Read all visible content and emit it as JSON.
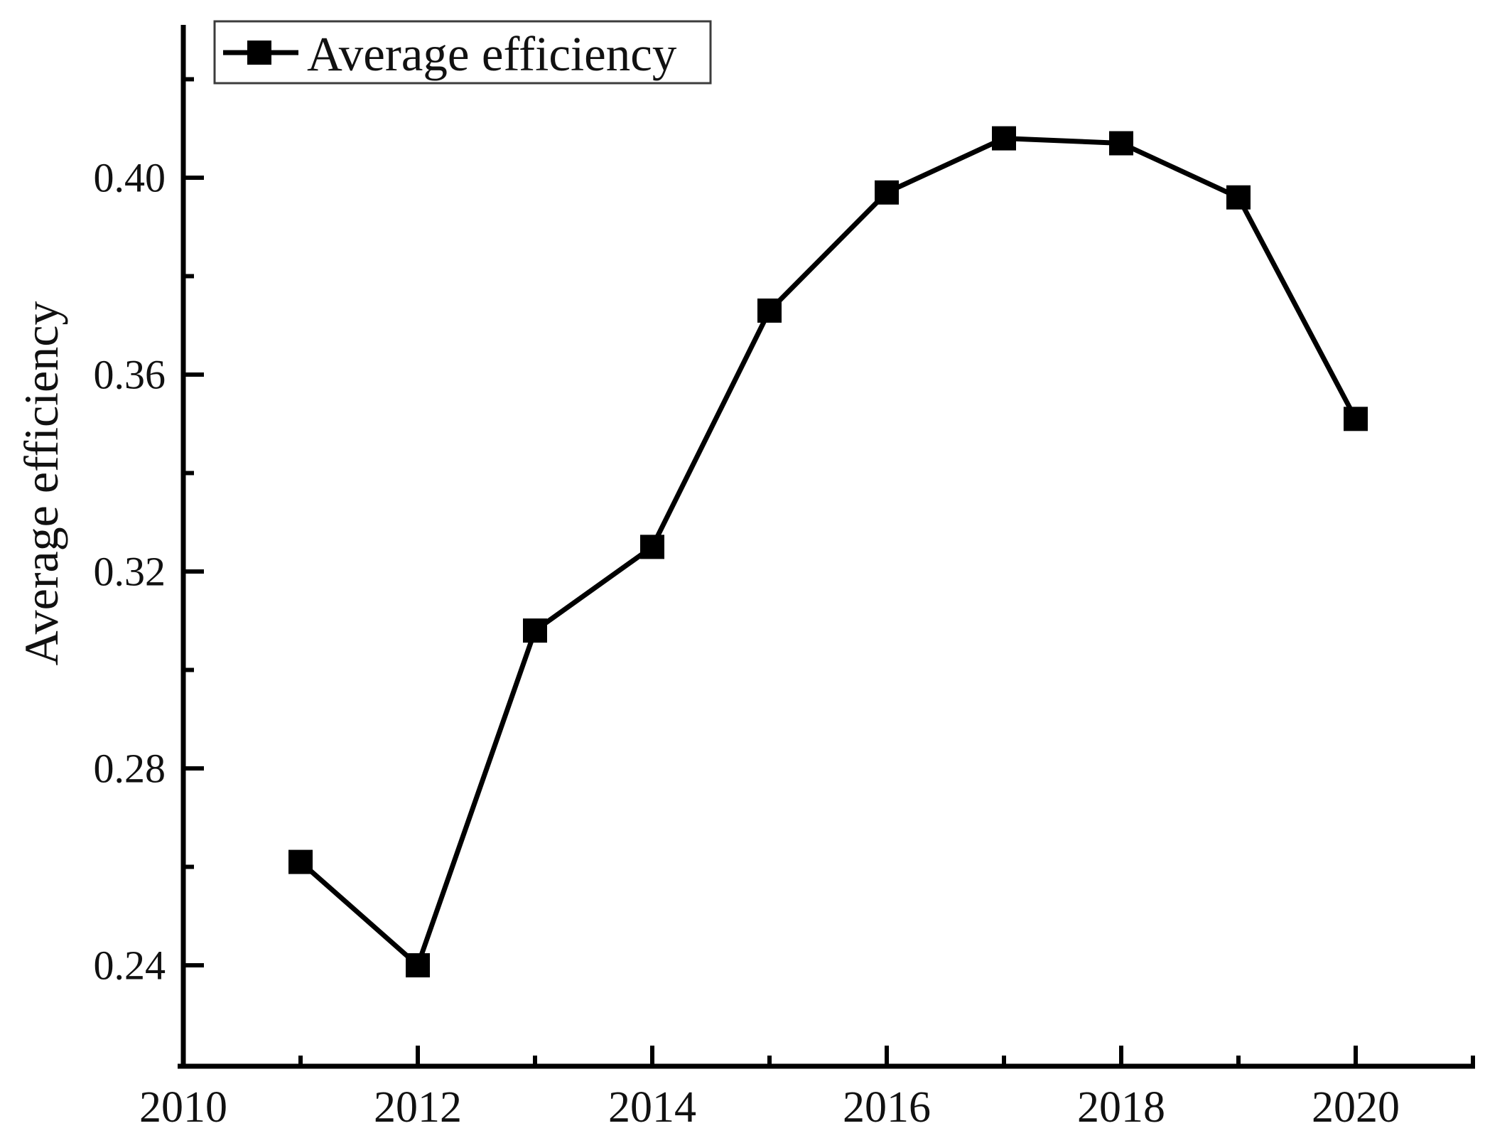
{
  "page": {
    "background": "#ffffff"
  },
  "chart_data": {
    "type": "line",
    "title": "",
    "xlabel": "",
    "ylabel": "Average efficiency",
    "legend": {
      "label": "Average efficiency",
      "position": "top-left",
      "marker": "filled-square"
    },
    "x": [
      2011,
      2012,
      2013,
      2014,
      2015,
      2016,
      2017,
      2018,
      2019,
      2020
    ],
    "series": [
      {
        "name": "Average efficiency",
        "marker": "filled-square",
        "color": "#000000",
        "values": [
          0.261,
          0.24,
          0.308,
          0.325,
          0.373,
          0.397,
          0.408,
          0.407,
          0.396,
          0.351
        ]
      }
    ],
    "x_axis": {
      "range": [
        2010,
        2021
      ],
      "major_ticks": [
        2010,
        2012,
        2014,
        2016,
        2018,
        2020
      ],
      "tick_labels": [
        "2010",
        "2012",
        "2014",
        "2016",
        "2018",
        "2020"
      ],
      "minor_ticks": [
        2011,
        2013,
        2015,
        2017,
        2019,
        2021
      ]
    },
    "y_axis": {
      "range": [
        0.2195,
        0.431
      ],
      "major_ticks": [
        0.24,
        0.28,
        0.32,
        0.36,
        0.4
      ],
      "tick_labels": [
        "0.24",
        "0.28",
        "0.32",
        "0.36",
        "0.40"
      ],
      "minor_ticks": [
        0.26,
        0.3,
        0.34,
        0.38,
        0.42
      ]
    },
    "grid": false,
    "legend_position": "top-left",
    "colors": {
      "axis": "#000000",
      "line": "#000000",
      "marker": "#000000",
      "text": "#111111",
      "legend_border": "#3c3c3c",
      "background": "#ffffff"
    }
  }
}
